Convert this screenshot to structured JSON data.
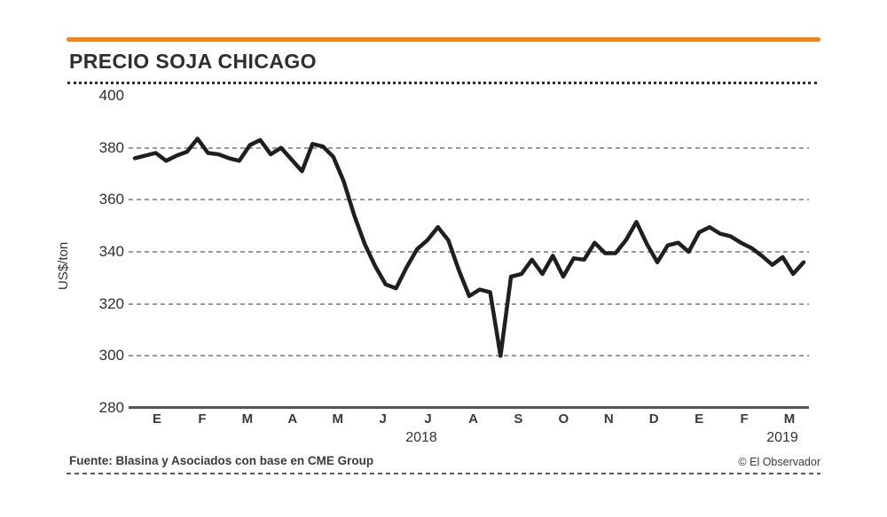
{
  "header": {
    "title": "PRECIO SOJA CHICAGO",
    "accent_color": "#E8862A"
  },
  "chart_data": {
    "type": "line",
    "title": "PRECIO SOJA CHICAGO",
    "ylabel": "US$/ton",
    "ylim": [
      280,
      400
    ],
    "yticks": [
      400,
      380,
      360,
      340,
      320,
      300,
      280
    ],
    "gridline_values": [
      380,
      360,
      340,
      320,
      300
    ],
    "grid_style": "dashed-horizontal",
    "legend": "none",
    "line_color": "#1f1f1f",
    "x_month_labels": [
      "E",
      "F",
      "M",
      "A",
      "M",
      "J",
      "J",
      "A",
      "S",
      "O",
      "N",
      "D",
      "E",
      "F",
      "M"
    ],
    "year_labels": [
      "2018",
      "2019"
    ],
    "series": [
      {
        "name": "Precio soja Chicago (US$/ton)",
        "values": [
          376,
          377,
          378,
          375,
          377,
          378.5,
          383.5,
          378,
          377.5,
          376,
          375,
          381,
          383,
          377.5,
          380,
          375.5,
          371,
          381.5,
          380.5,
          376.5,
          367,
          354,
          343,
          334.5,
          327.5,
          326,
          334,
          341,
          344.5,
          349.5,
          344.5,
          333,
          323,
          325.5,
          324.5,
          300,
          330.5,
          331.5,
          337,
          331.5,
          338.5,
          330.5,
          337.5,
          337,
          343.5,
          339.5,
          339.5,
          344.5,
          351.5,
          343,
          336,
          342.5,
          343.5,
          340,
          347.5,
          349.5,
          347,
          346,
          343.5,
          341.5,
          338.5,
          335,
          338,
          331.5,
          336
        ]
      }
    ]
  },
  "footer": {
    "source": "Fuente: Blasina y Asociados con base en CME Group",
    "credit": "© El Observador"
  }
}
